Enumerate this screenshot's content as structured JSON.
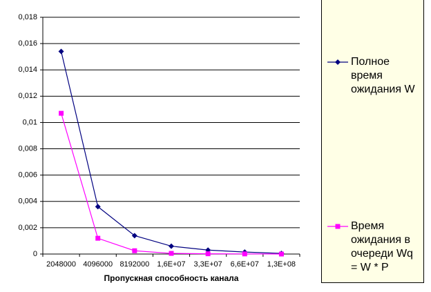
{
  "chart_data": {
    "type": "line",
    "x_label": "Пропускная способность канала",
    "categories": [
      "2048000",
      "4096000",
      "8192000",
      "1,6E+07",
      "3,3E+07",
      "6,6E+07",
      "1,3E+08"
    ],
    "series": [
      {
        "name": "Полное время ожидания W",
        "color": "#000080",
        "marker": "diamond",
        "values": [
          0.0154,
          0.0036,
          0.0014,
          0.0006,
          0.0003,
          0.00015,
          5e-05
        ]
      },
      {
        "name": "Время ожидания в очереди Wq = W * P",
        "color": "#ff00ff",
        "marker": "square",
        "values": [
          0.0107,
          0.0012,
          0.00025,
          5e-05,
          2e-05,
          1e-05,
          0
        ]
      }
    ],
    "ylim": [
      0,
      0.018
    ],
    "yticks": [
      0,
      {
        "value": 0.002,
        "label": "0,002"
      },
      {
        "value": 0.004,
        "label": "0,004"
      },
      {
        "value": 0.006,
        "label": "0,006"
      },
      {
        "value": 0.008,
        "label": "0,008"
      },
      {
        "value": 0.01,
        "label": "0,01"
      },
      {
        "value": 0.012,
        "label": "0,012"
      },
      {
        "value": 0.014,
        "label": "0,014"
      },
      {
        "value": 0.016,
        "label": "0,016"
      },
      {
        "value": 0.018,
        "label": "0,018"
      }
    ],
    "grid": true,
    "legend": "right"
  }
}
